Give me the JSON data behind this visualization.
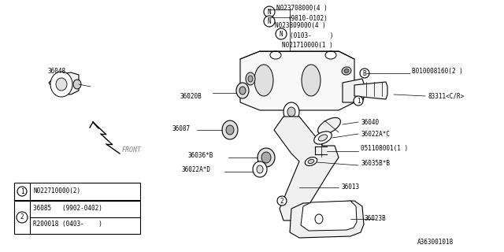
{
  "bg_color": "#ffffff",
  "line_color": "#000000",
  "text_color": "#000000",
  "fig_width": 6.4,
  "fig_height": 3.2,
  "dpi": 100,
  "labels": {
    "N023708000": "N023708000(4 )",
    "9910_0102": "(9810-0102)",
    "N023809000": "N023809000(4 )",
    "0103": "(0103-     )",
    "N021710000": "N021710000(1 )",
    "36048": "36048",
    "36020B": "36020B",
    "B010008160": "B010008160(2 )",
    "83311": "83311<C/R>",
    "36087": "36087",
    "36040": "36040",
    "36022A_C": "36022A*C",
    "051108001": "051108001(1 )",
    "36036B": "36036*B",
    "36035B": "36035B*B",
    "36022A_D": "36022A*D",
    "36013": "36013",
    "36023B": "36023B",
    "FRONT": "FRONT",
    "N022710000": "N022710000(2)",
    "part_36085": "36085   (9902-0402)",
    "part_R200018": "R200018 (0403-    )",
    "diagram_id": "A363001018"
  }
}
